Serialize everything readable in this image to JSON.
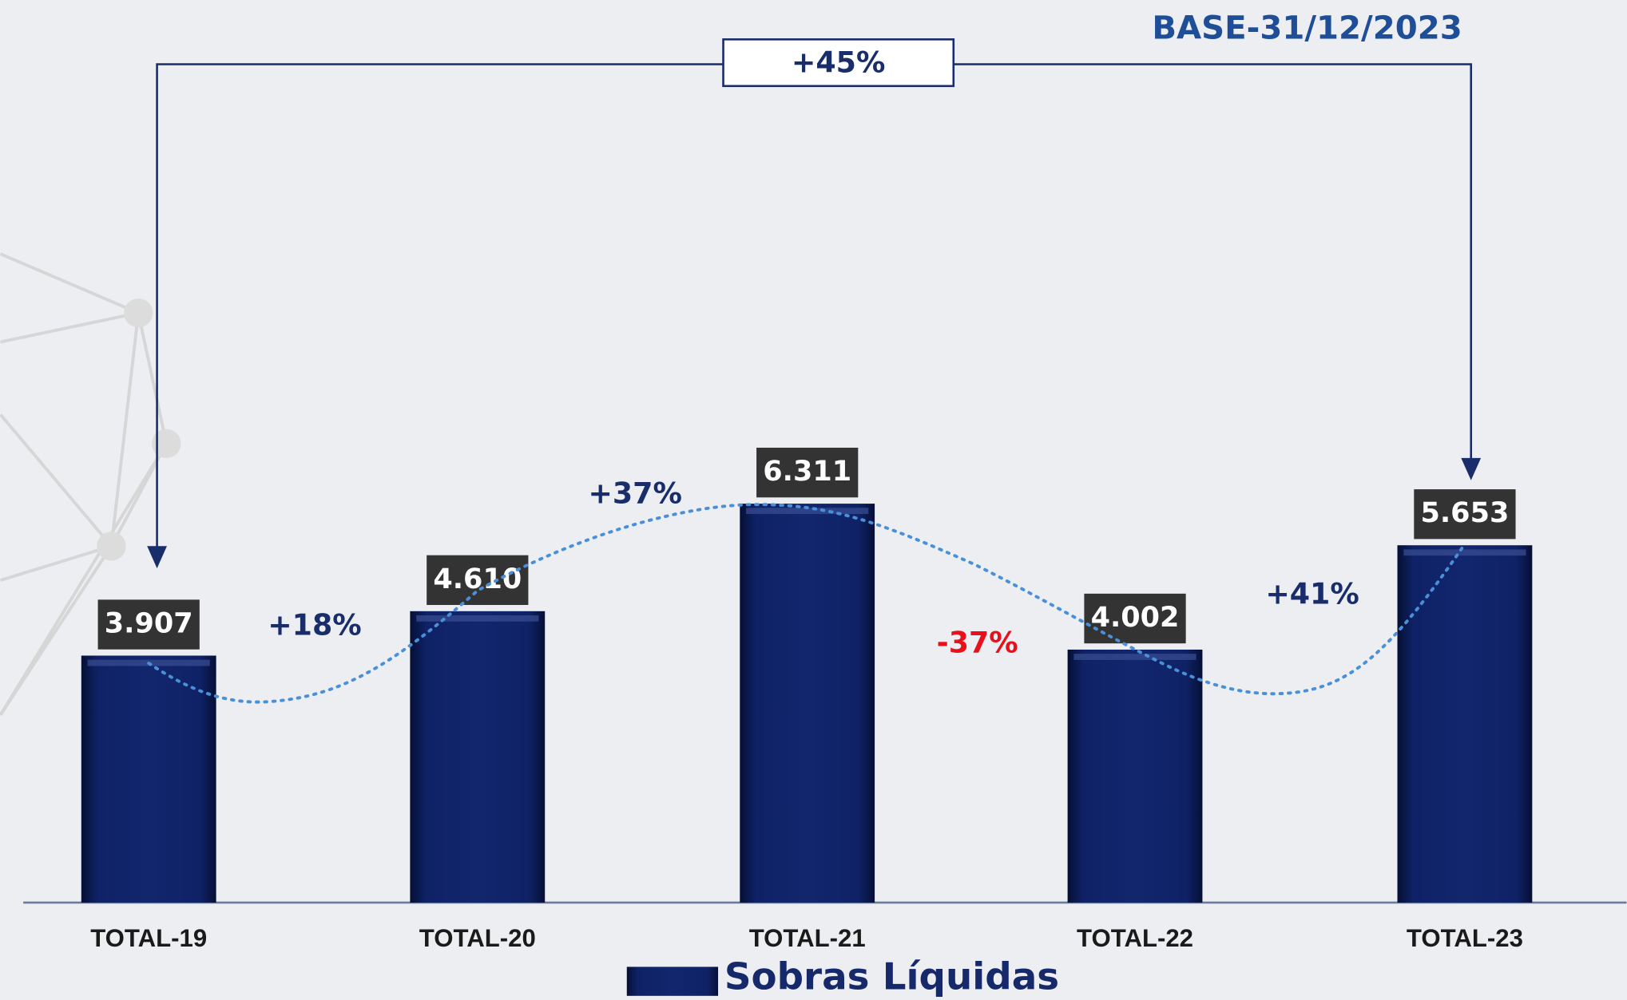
{
  "chart_data": {
    "type": "bar",
    "subtitle": "BASE-31/12/2023",
    "categories": [
      "TOTAL-19",
      "TOTAL-20",
      "TOTAL-21",
      "TOTAL-22",
      "TOTAL-23"
    ],
    "series": [
      {
        "name": "Sobras Líquidas",
        "color": "#12266e",
        "values": [
          3.907,
          4.61,
          6.311,
          4.002,
          5.653
        ],
        "value_labels": [
          "3.907",
          "4.610",
          "6.311",
          "4.002",
          "5.653"
        ]
      }
    ],
    "annotations": [
      "+45%",
      "+18%",
      "+37%",
      "-37%",
      "+41%"
    ]
  }
}
